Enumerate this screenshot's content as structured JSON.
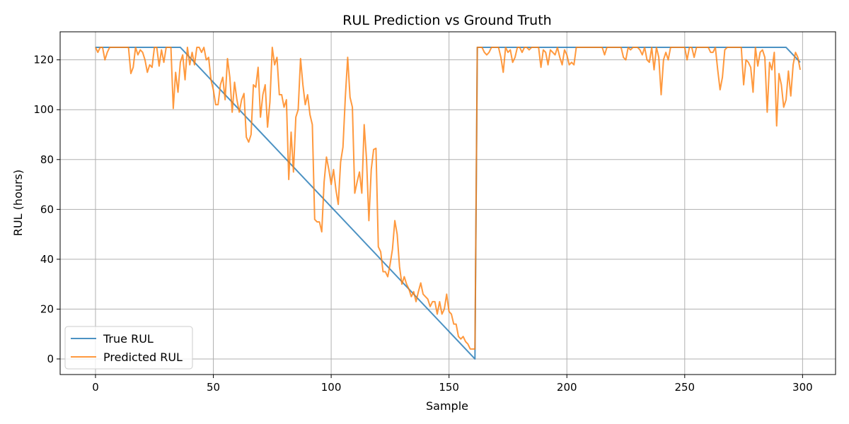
{
  "chart_data": {
    "type": "line",
    "title": "RUL Prediction vs Ground Truth",
    "xlabel": "Sample",
    "ylabel": "RUL (hours)",
    "xlim": [
      -15,
      314
    ],
    "ylim": [
      -6.25,
      131.25
    ],
    "xticks": [
      0,
      50,
      100,
      150,
      200,
      250,
      300
    ],
    "yticks": [
      0,
      20,
      40,
      60,
      80,
      100,
      120
    ],
    "grid": true,
    "legend_position": "lower-left",
    "series": [
      {
        "name": "True RUL",
        "color": "#1f77b4",
        "points": [
          [
            0,
            125
          ],
          [
            36,
            125
          ],
          [
            161,
            0
          ],
          [
            162,
            125
          ],
          [
            293,
            125
          ],
          [
            299,
            119
          ]
        ]
      },
      {
        "name": "Predicted RUL",
        "color": "#ff7f0e",
        "points": [
          [
            0,
            125
          ],
          [
            1,
            123
          ],
          [
            2,
            125
          ],
          [
            3,
            125
          ],
          [
            4,
            120
          ],
          [
            5,
            123
          ],
          [
            6,
            125
          ],
          [
            7,
            125
          ],
          [
            8,
            125
          ],
          [
            9,
            125
          ],
          [
            10,
            125
          ],
          [
            11,
            125
          ],
          [
            12,
            125
          ],
          [
            13,
            125
          ],
          [
            14,
            125
          ],
          [
            15,
            114.5
          ],
          [
            16,
            117
          ],
          [
            17,
            125
          ],
          [
            18,
            122
          ],
          [
            19,
            124
          ],
          [
            20,
            123
          ],
          [
            21,
            120
          ],
          [
            22,
            115
          ],
          [
            23,
            118
          ],
          [
            24,
            117
          ],
          [
            25,
            125
          ],
          [
            26,
            125
          ],
          [
            27,
            117.5
          ],
          [
            28,
            124
          ],
          [
            29,
            119
          ],
          [
            30,
            125
          ],
          [
            31,
            125
          ],
          [
            32,
            125
          ],
          [
            33,
            100.5
          ],
          [
            34,
            115
          ],
          [
            35,
            107
          ],
          [
            36,
            119
          ],
          [
            37,
            122
          ],
          [
            38,
            112
          ],
          [
            39,
            125
          ],
          [
            40,
            118
          ],
          [
            41,
            123
          ],
          [
            42,
            118
          ],
          [
            43,
            125
          ],
          [
            44,
            125
          ],
          [
            45,
            123
          ],
          [
            46,
            125
          ],
          [
            47,
            120
          ],
          [
            48,
            121
          ],
          [
            49,
            112
          ],
          [
            50,
            108
          ],
          [
            51,
            102
          ],
          [
            52,
            102
          ],
          [
            53,
            110
          ],
          [
            54,
            113
          ],
          [
            55,
            104
          ],
          [
            56,
            120.5
          ],
          [
            57,
            113
          ],
          [
            58,
            99
          ],
          [
            59,
            111
          ],
          [
            60,
            104
          ],
          [
            61,
            99
          ],
          [
            62,
            104
          ],
          [
            63,
            106.5
          ],
          [
            64,
            89
          ],
          [
            65,
            87
          ],
          [
            66,
            90
          ],
          [
            67,
            110
          ],
          [
            68,
            109
          ],
          [
            69,
            117
          ],
          [
            70,
            97
          ],
          [
            71,
            106
          ],
          [
            72,
            110
          ],
          [
            73,
            93
          ],
          [
            74,
            103
          ],
          [
            75,
            125
          ],
          [
            76,
            118
          ],
          [
            77,
            121
          ],
          [
            78,
            106
          ],
          [
            79,
            106
          ],
          [
            80,
            101
          ],
          [
            81,
            104
          ],
          [
            82,
            72
          ],
          [
            83,
            91
          ],
          [
            84,
            75
          ],
          [
            85,
            97
          ],
          [
            86,
            100
          ],
          [
            87,
            120.5
          ],
          [
            88,
            110
          ],
          [
            89,
            102
          ],
          [
            90,
            106
          ],
          [
            91,
            98
          ],
          [
            92,
            94
          ],
          [
            93,
            56
          ],
          [
            94,
            55
          ],
          [
            95,
            55
          ],
          [
            96,
            51
          ],
          [
            97,
            71
          ],
          [
            98,
            81
          ],
          [
            99,
            76
          ],
          [
            100,
            70
          ],
          [
            101,
            76
          ],
          [
            102,
            68
          ],
          [
            103,
            62
          ],
          [
            104,
            79
          ],
          [
            105,
            85
          ],
          [
            106,
            105
          ],
          [
            107,
            121
          ],
          [
            108,
            105
          ],
          [
            109,
            101
          ],
          [
            110,
            66.5
          ],
          [
            111,
            71
          ],
          [
            112,
            75
          ],
          [
            113,
            66.5
          ],
          [
            114,
            94
          ],
          [
            115,
            80
          ],
          [
            116,
            55.5
          ],
          [
            117,
            76
          ],
          [
            118,
            84
          ],
          [
            119,
            84.5
          ],
          [
            120,
            45
          ],
          [
            121,
            43
          ],
          [
            122,
            35
          ],
          [
            123,
            35
          ],
          [
            124,
            33
          ],
          [
            125,
            38
          ],
          [
            126,
            44
          ],
          [
            127,
            55.5
          ],
          [
            128,
            50
          ],
          [
            129,
            37
          ],
          [
            130,
            30
          ],
          [
            131,
            33
          ],
          [
            132,
            30
          ],
          [
            133,
            28
          ],
          [
            134,
            25
          ],
          [
            135,
            27
          ],
          [
            136,
            23
          ],
          [
            137,
            27
          ],
          [
            138,
            30.5
          ],
          [
            139,
            26
          ],
          [
            140,
            25
          ],
          [
            141,
            24
          ],
          [
            142,
            21
          ],
          [
            143,
            23
          ],
          [
            144,
            23
          ],
          [
            145,
            18
          ],
          [
            146,
            23
          ],
          [
            147,
            18
          ],
          [
            148,
            20
          ],
          [
            149,
            26
          ],
          [
            150,
            19
          ],
          [
            151,
            18
          ],
          [
            152,
            14
          ],
          [
            153,
            14
          ],
          [
            154,
            9
          ],
          [
            155,
            8
          ],
          [
            156,
            9
          ],
          [
            157,
            7
          ],
          [
            158,
            6
          ],
          [
            159,
            4
          ],
          [
            160,
            4
          ],
          [
            161,
            4
          ],
          [
            162,
            125
          ],
          [
            163,
            125
          ],
          [
            164,
            125
          ],
          [
            165,
            123
          ],
          [
            166,
            122
          ],
          [
            167,
            123
          ],
          [
            168,
            125
          ],
          [
            169,
            125
          ],
          [
            170,
            125
          ],
          [
            171,
            125
          ],
          [
            172,
            121
          ],
          [
            173,
            115
          ],
          [
            174,
            125
          ],
          [
            175,
            123
          ],
          [
            176,
            124
          ],
          [
            177,
            119
          ],
          [
            178,
            121
          ],
          [
            179,
            125
          ],
          [
            180,
            125
          ],
          [
            181,
            123
          ],
          [
            182,
            125
          ],
          [
            183,
            125
          ],
          [
            184,
            124
          ],
          [
            185,
            125
          ],
          [
            186,
            125
          ],
          [
            187,
            125
          ],
          [
            188,
            125
          ],
          [
            189,
            117
          ],
          [
            190,
            124
          ],
          [
            191,
            123
          ],
          [
            192,
            118
          ],
          [
            193,
            124
          ],
          [
            194,
            123
          ],
          [
            195,
            122
          ],
          [
            196,
            125
          ],
          [
            197,
            121
          ],
          [
            198,
            118
          ],
          [
            199,
            124
          ],
          [
            200,
            122
          ],
          [
            201,
            118
          ],
          [
            202,
            119
          ],
          [
            203,
            118
          ],
          [
            204,
            125
          ],
          [
            205,
            125
          ],
          [
            206,
            125
          ],
          [
            207,
            125
          ],
          [
            208,
            125
          ],
          [
            209,
            125
          ],
          [
            210,
            125
          ],
          [
            211,
            125
          ],
          [
            212,
            125
          ],
          [
            213,
            125
          ],
          [
            214,
            125
          ],
          [
            215,
            125
          ],
          [
            216,
            122
          ],
          [
            217,
            125
          ],
          [
            218,
            125
          ],
          [
            219,
            125
          ],
          [
            220,
            125
          ],
          [
            221,
            125
          ],
          [
            222,
            125
          ],
          [
            223,
            125
          ],
          [
            224,
            121
          ],
          [
            225,
            120
          ],
          [
            226,
            125
          ],
          [
            227,
            124
          ],
          [
            228,
            125
          ],
          [
            229,
            125
          ],
          [
            230,
            125
          ],
          [
            231,
            124
          ],
          [
            232,
            122
          ],
          [
            233,
            125
          ],
          [
            234,
            120
          ],
          [
            235,
            119
          ],
          [
            236,
            125
          ],
          [
            237,
            116
          ],
          [
            238,
            125
          ],
          [
            239,
            121
          ],
          [
            240,
            106
          ],
          [
            241,
            120
          ],
          [
            242,
            123
          ],
          [
            243,
            120
          ],
          [
            244,
            125
          ],
          [
            245,
            125
          ],
          [
            246,
            125
          ],
          [
            247,
            125
          ],
          [
            248,
            125
          ],
          [
            249,
            125
          ],
          [
            250,
            125
          ],
          [
            251,
            120
          ],
          [
            252,
            125
          ],
          [
            253,
            125
          ],
          [
            254,
            121
          ],
          [
            255,
            125
          ],
          [
            256,
            125
          ],
          [
            257,
            125
          ],
          [
            258,
            125
          ],
          [
            259,
            125
          ],
          [
            260,
            125
          ],
          [
            261,
            123
          ],
          [
            262,
            123
          ],
          [
            263,
            125
          ],
          [
            264,
            116
          ],
          [
            265,
            108
          ],
          [
            266,
            113
          ],
          [
            267,
            124
          ],
          [
            268,
            125
          ],
          [
            269,
            125
          ],
          [
            270,
            125
          ],
          [
            271,
            125
          ],
          [
            272,
            125
          ],
          [
            273,
            125
          ],
          [
            274,
            125
          ],
          [
            275,
            110
          ],
          [
            276,
            120
          ],
          [
            277,
            119
          ],
          [
            278,
            117
          ],
          [
            279,
            107
          ],
          [
            280,
            125
          ],
          [
            281,
            117.5
          ],
          [
            282,
            123
          ],
          [
            283,
            124
          ],
          [
            284,
            121
          ],
          [
            285,
            99
          ],
          [
            286,
            119
          ],
          [
            287,
            116
          ],
          [
            288,
            123
          ],
          [
            289,
            93.5
          ],
          [
            290,
            114.5
          ],
          [
            291,
            110
          ],
          [
            292,
            101
          ],
          [
            293,
            104
          ],
          [
            294,
            115.5
          ],
          [
            295,
            105.5
          ],
          [
            296,
            118
          ],
          [
            297,
            123
          ],
          [
            298,
            121
          ],
          [
            299,
            116
          ]
        ]
      }
    ]
  }
}
